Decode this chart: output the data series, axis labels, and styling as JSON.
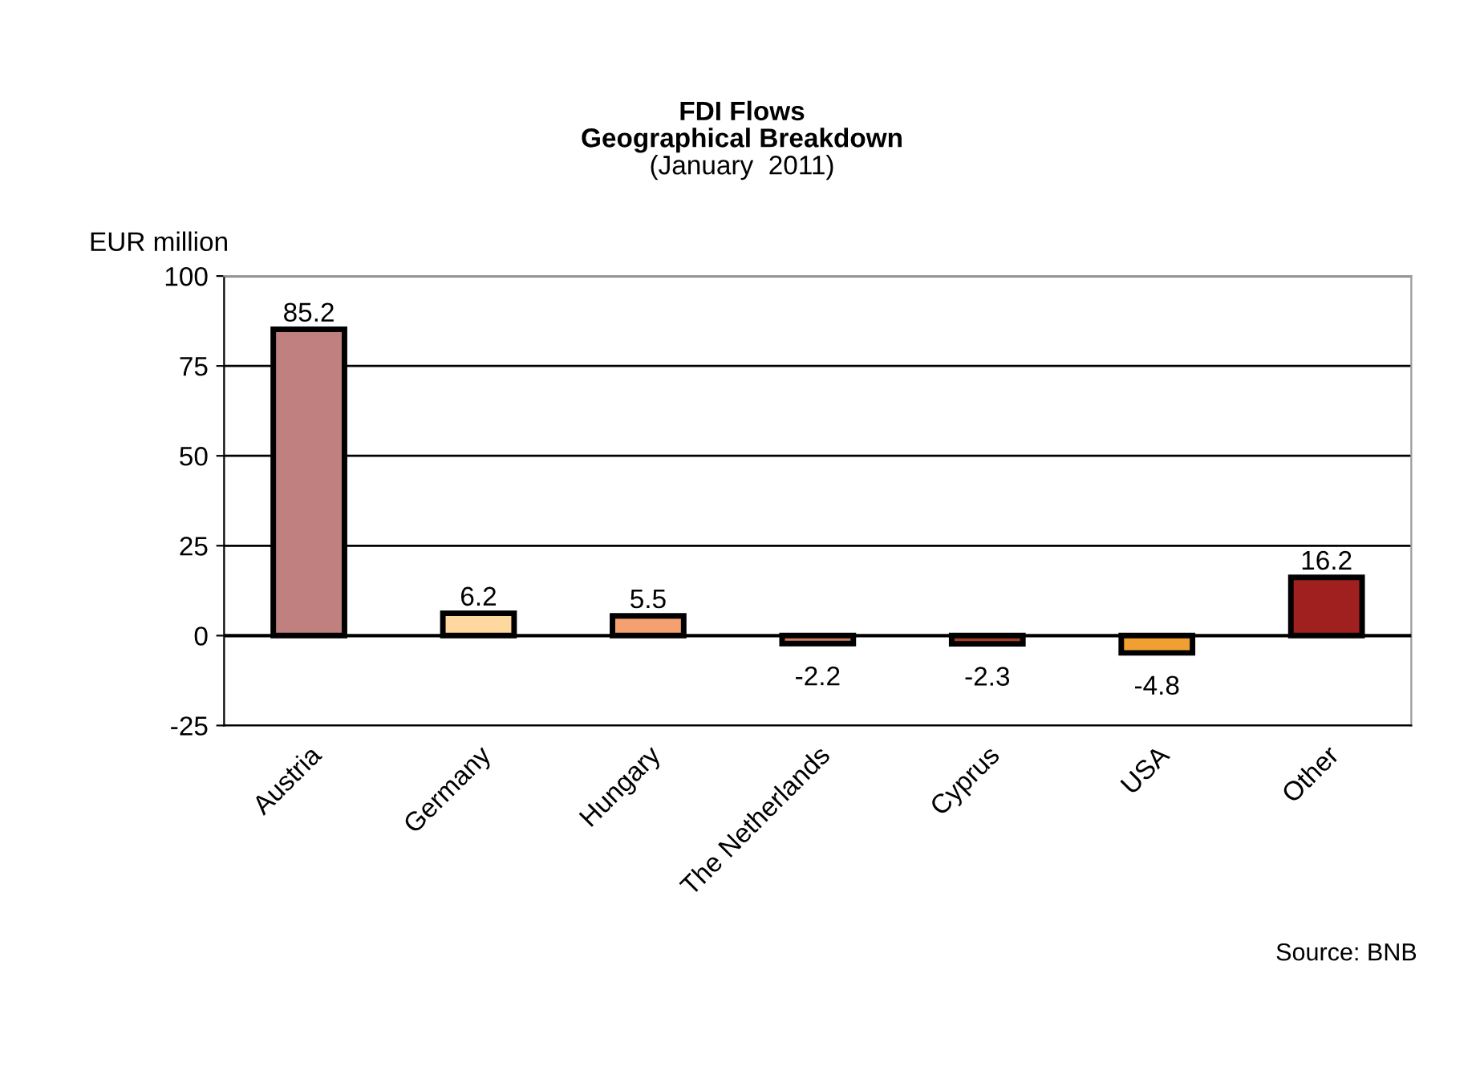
{
  "chart_data": {
    "type": "bar",
    "title": "FDI Flows\nGeographical Breakdown",
    "subtitle": "(January  2011)",
    "ylabel": "EUR million",
    "categories": [
      "Austria",
      "Germany",
      "Hungary",
      "The Netherlands",
      "Cyprus",
      "USA",
      "Other"
    ],
    "values": [
      85.2,
      6.2,
      5.5,
      -2.2,
      -2.3,
      -4.8,
      16.2
    ],
    "colors": [
      "#c08080",
      "#ffd8a0",
      "#f4a070",
      "#d08060",
      "#a04020",
      "#f0a030",
      "#a02020"
    ],
    "ylim": [
      -25,
      100
    ],
    "yticks": [
      -25,
      0,
      25,
      50,
      75,
      100
    ],
    "grid": "y",
    "data_labels": true,
    "legend": false,
    "annotations": [
      "Source: BNB"
    ]
  }
}
